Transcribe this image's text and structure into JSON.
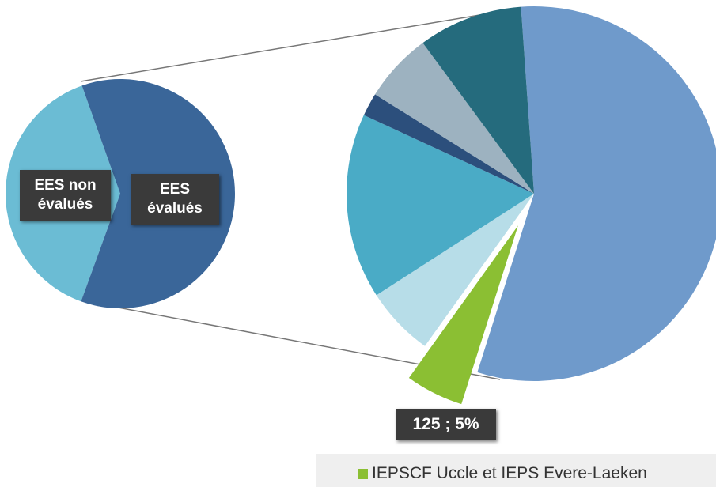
{
  "chart_data": {
    "type": "pie_of_pie",
    "main": {
      "categories": [
        "EES non évalués",
        "EES évalués"
      ],
      "values": [
        1600,
        2500
      ],
      "colors": [
        "#6bbcd4",
        "#3a6699"
      ]
    },
    "detail": {
      "categories": [
        null,
        "IEPSCF Uccle et IEPS Evere-Laeken",
        null,
        null,
        null,
        null,
        null
      ],
      "values": [
        1400,
        125,
        150,
        400,
        50,
        150,
        225
      ],
      "value_labels": [
        null,
        "125 ; 5%",
        null,
        null,
        null,
        null,
        null
      ],
      "colors": [
        "#6f9acb",
        "#8bbf33",
        "#b7dde8",
        "#4aabc6",
        "#2c4f7c",
        "#9db2c0",
        "#256b7d"
      ]
    },
    "legend": "bottom-right"
  }
}
